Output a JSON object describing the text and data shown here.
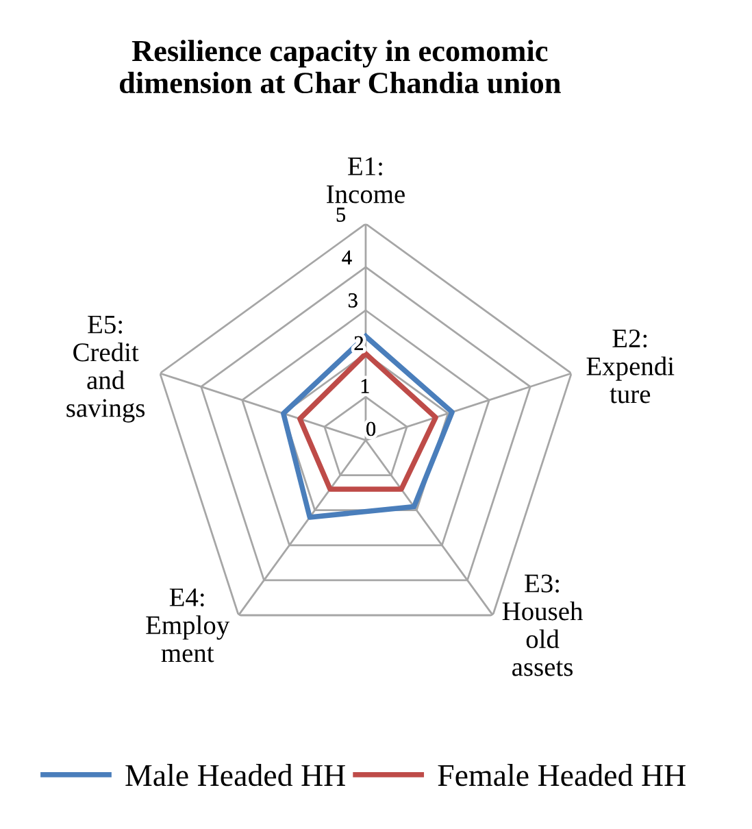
{
  "chart_data": {
    "type": "radar",
    "title": "Resilience capacity in ecomomic\ndimension at Char Chandia union",
    "categories": [
      "E1:\nIncome",
      "E2:\nExpendi\nture",
      "E3:\nHouseh\nold\nassets",
      "E4:\nEmploy\nment",
      "E5:\nCredit\nand\nsavings"
    ],
    "series": [
      {
        "name": "Male Headed HH",
        "color": "#4a7ebb",
        "values": [
          2.4,
          2.1,
          1.9,
          2.2,
          2.0
        ]
      },
      {
        "name": "Female Headed HH",
        "color": "#be4b48",
        "values": [
          2.0,
          1.7,
          1.4,
          1.4,
          1.6
        ]
      }
    ],
    "ylim": [
      0,
      5
    ],
    "yticks": [
      0,
      1,
      2,
      3,
      4,
      5
    ],
    "grid": true,
    "legend": "bottom"
  }
}
